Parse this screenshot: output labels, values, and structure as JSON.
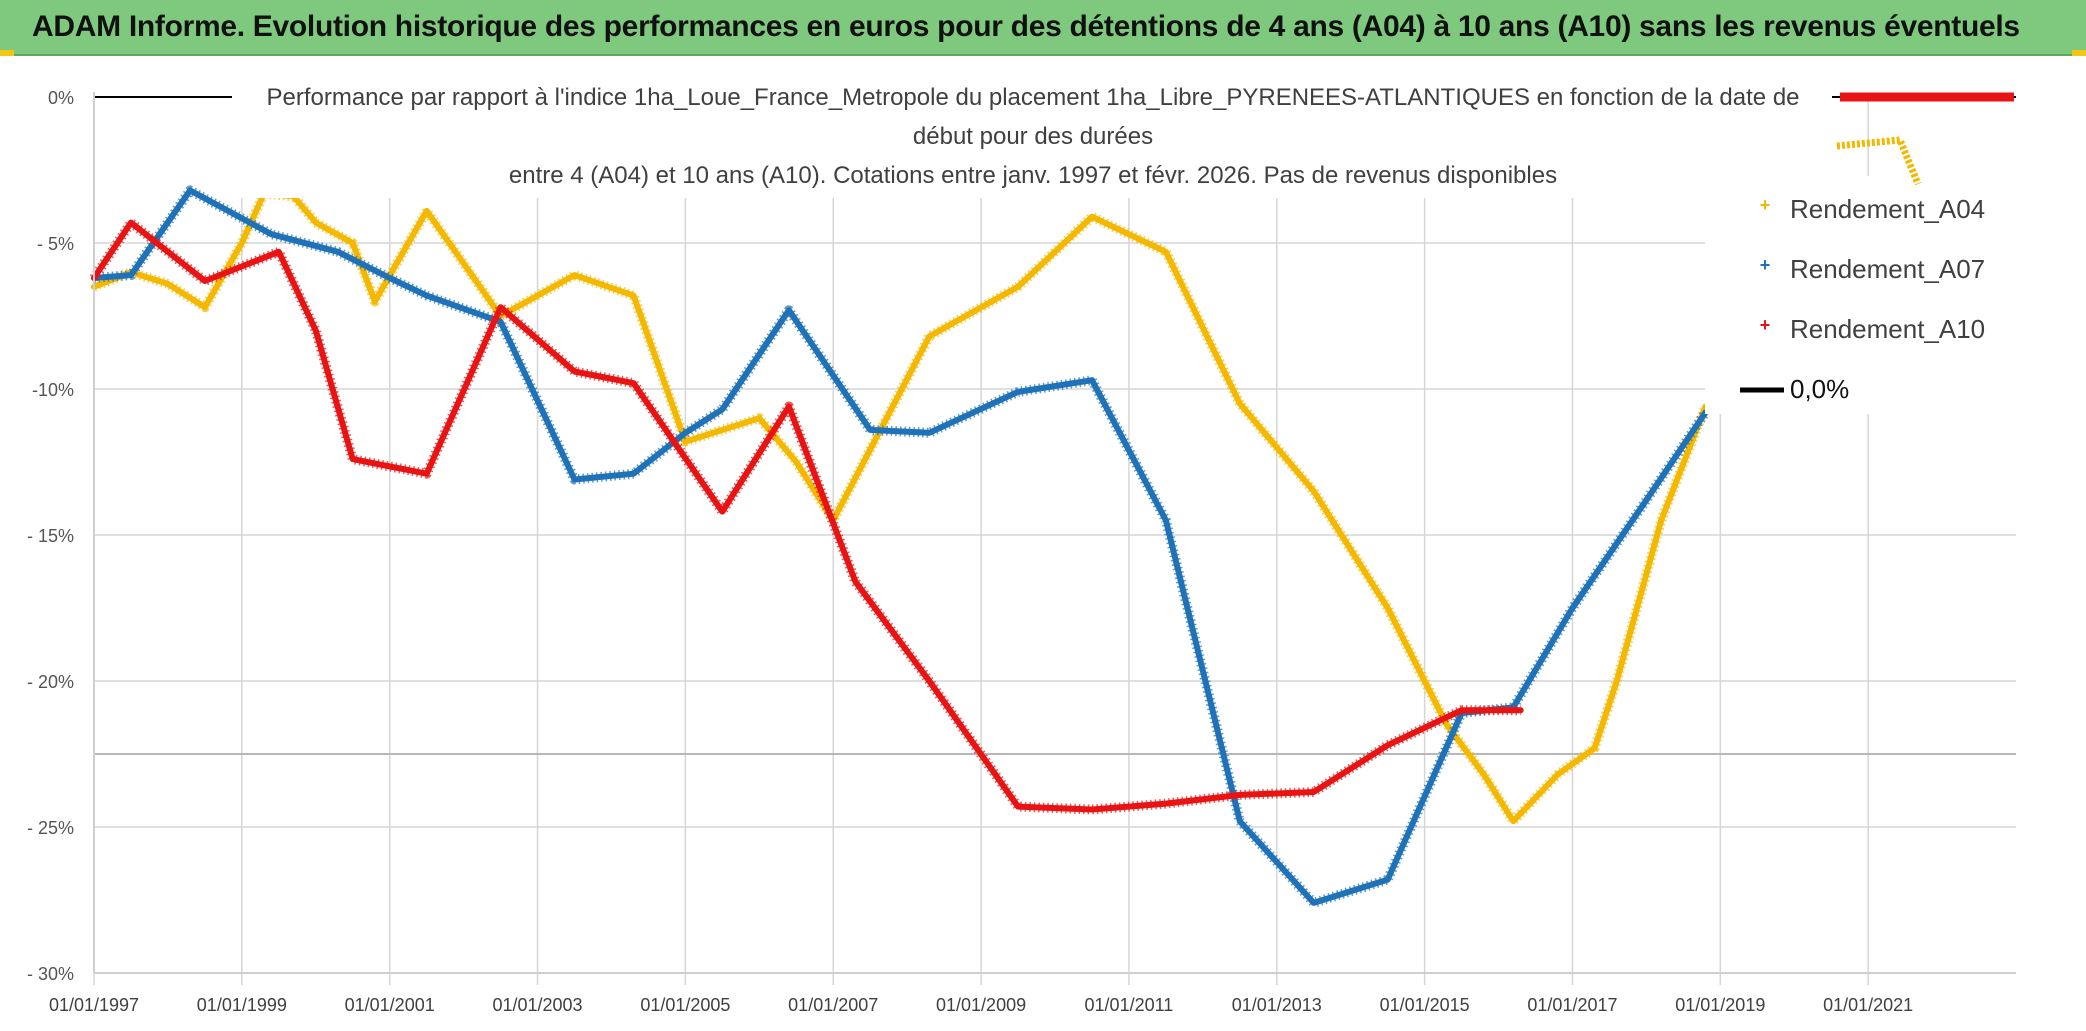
{
  "banner": {
    "title": "ADAM Informe. Evolution historique des performances en euros pour des détentions de 4 ans (A04) à 10 ans (A10) sans les revenus éventuels"
  },
  "chart_data": {
    "type": "line",
    "title_lines": [
      "Performance par rapport à l'indice 1ha_Loue_France_Metropole  du placement 1ha_Libre_PYRENEES-ATLANTIQUES en fonction de la date de",
      "début pour des durées",
      "entre 4 (A04) et 10 ans (A10). Cotations entre janv. 1997 et févr. 2026. Pas de revenus disponibles"
    ],
    "x_tick_labels": [
      "01/01/1997",
      "01/01/1999",
      "01/01/2001",
      "01/01/2003",
      "01/01/2005",
      "01/01/2007",
      "01/01/2009",
      "01/01/2011",
      "01/01/2013",
      "01/01/2015",
      "01/01/2017",
      "01/01/2019",
      "01/01/2021"
    ],
    "x_range": [
      1997.0,
      2023.0
    ],
    "y_tick_labels": [
      "0%",
      "- 5%",
      "-10%",
      "- 15%",
      "- 20%",
      "- 25%",
      "- 30%"
    ],
    "y_range": [
      -30,
      0
    ],
    "series": [
      {
        "name": "Rendement_A04",
        "color": "#f5b800",
        "points": [
          [
            1997.0,
            -6.5
          ],
          [
            1997.5,
            -6.0
          ],
          [
            1998.0,
            -6.4
          ],
          [
            1998.5,
            -7.2
          ],
          [
            1999.0,
            -5.0
          ],
          [
            1999.3,
            -3.3
          ],
          [
            1999.7,
            -3.4
          ],
          [
            2000.0,
            -4.3
          ],
          [
            2000.5,
            -5.0
          ],
          [
            2000.8,
            -7.0
          ],
          [
            2001.5,
            -3.9
          ],
          [
            2002.5,
            -7.5
          ],
          [
            2003.5,
            -6.1
          ],
          [
            2004.3,
            -6.8
          ],
          [
            2005.0,
            -11.8
          ],
          [
            2006.0,
            -11.0
          ],
          [
            2006.5,
            -12.5
          ],
          [
            2007.0,
            -14.5
          ],
          [
            2008.3,
            -8.2
          ],
          [
            2009.5,
            -6.5
          ],
          [
            2010.5,
            -4.1
          ],
          [
            2011.5,
            -5.3
          ],
          [
            2012.5,
            -10.5
          ],
          [
            2013.5,
            -13.5
          ],
          [
            2014.5,
            -17.5
          ],
          [
            2015.3,
            -21.5
          ],
          [
            2015.8,
            -23.2
          ],
          [
            2016.2,
            -24.8
          ],
          [
            2016.8,
            -23.2
          ],
          [
            2017.3,
            -22.3
          ],
          [
            2017.6,
            -20.0
          ],
          [
            2018.2,
            -14.5
          ],
          [
            2018.8,
            -10.6
          ]
        ]
      },
      {
        "name": "Rendement_A07",
        "color": "#1f72b8",
        "points": [
          [
            1997.0,
            -6.2
          ],
          [
            1997.5,
            -6.1
          ],
          [
            1998.3,
            -3.2
          ],
          [
            1999.4,
            -4.7
          ],
          [
            2000.3,
            -5.3
          ],
          [
            2001.0,
            -6.2
          ],
          [
            2001.5,
            -6.8
          ],
          [
            2002.5,
            -7.7
          ],
          [
            2003.5,
            -13.1
          ],
          [
            2004.3,
            -12.9
          ],
          [
            2005.0,
            -11.5
          ],
          [
            2005.5,
            -10.7
          ],
          [
            2006.4,
            -7.3
          ],
          [
            2007.5,
            -11.4
          ],
          [
            2008.3,
            -11.5
          ],
          [
            2009.5,
            -10.1
          ],
          [
            2010.5,
            -9.7
          ],
          [
            2011.5,
            -14.5
          ],
          [
            2012.5,
            -24.8
          ],
          [
            2013.5,
            -27.6
          ],
          [
            2014.5,
            -26.8
          ],
          [
            2015.5,
            -21.1
          ],
          [
            2016.2,
            -20.9
          ],
          [
            2017.0,
            -17.5
          ],
          [
            2018.0,
            -13.8
          ],
          [
            2018.8,
            -10.8
          ]
        ]
      },
      {
        "name": "Rendement_A10",
        "color": "#e81414",
        "points": [
          [
            1997.0,
            -6.2
          ],
          [
            1997.5,
            -4.3
          ],
          [
            1998.5,
            -6.3
          ],
          [
            1999.5,
            -5.3
          ],
          [
            2000.0,
            -8.0
          ],
          [
            2000.5,
            -12.4
          ],
          [
            2001.5,
            -12.9
          ],
          [
            2002.5,
            -7.2
          ],
          [
            2003.5,
            -9.4
          ],
          [
            2004.3,
            -9.8
          ],
          [
            2005.5,
            -14.2
          ],
          [
            2006.4,
            -10.6
          ],
          [
            2007.3,
            -16.6
          ],
          [
            2008.3,
            -20.0
          ],
          [
            2009.5,
            -24.3
          ],
          [
            2010.5,
            -24.4
          ],
          [
            2011.5,
            -24.2
          ],
          [
            2012.5,
            -23.9
          ],
          [
            2013.5,
            -23.8
          ],
          [
            2014.5,
            -22.2
          ],
          [
            2015.5,
            -21.0
          ],
          [
            2016.3,
            -21.0
          ]
        ]
      },
      {
        "name": "0,0%",
        "color": "#000000",
        "points": [
          [
            1997.0,
            0.0
          ],
          [
            2023.0,
            0.0
          ]
        ]
      }
    ],
    "legend": {
      "position": "top-right",
      "entries": [
        "Rendement_A04",
        "Rendement_A07",
        "Rendement_A10",
        "0,0%"
      ]
    },
    "grid": true
  }
}
